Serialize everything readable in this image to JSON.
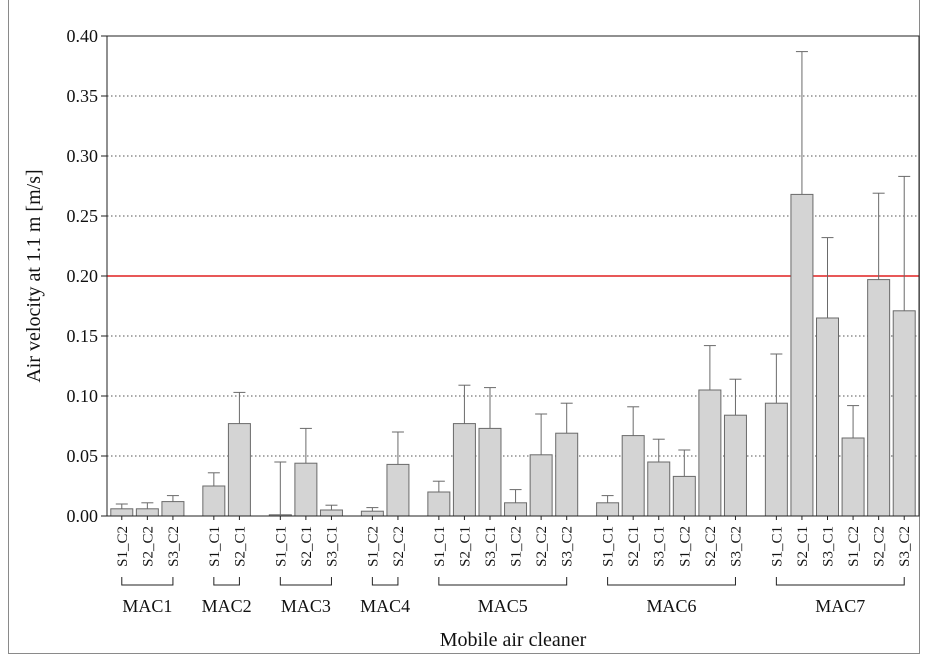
{
  "chart_data": {
    "type": "bar",
    "xlabel": "Mobile air cleaner",
    "ylabel": "Air velocity at 1.1 m [m/s]",
    "ylim": [
      0,
      0.4
    ],
    "yticks": [
      "0.00",
      "0.05",
      "0.10",
      "0.15",
      "0.20",
      "0.25",
      "0.30",
      "0.35",
      "0.40"
    ],
    "grid": "horizontal-dotted",
    "reference_line": {
      "value": 0.2,
      "color": "#e02020"
    },
    "bar_color": "#d4d4d4",
    "groups": [
      {
        "name": "MAC1",
        "bars": [
          {
            "label": "S1_C2",
            "value": 0.006,
            "error": 0.004
          },
          {
            "label": "S2_C2",
            "value": 0.006,
            "error": 0.005
          },
          {
            "label": "S3_C2",
            "value": 0.012,
            "error": 0.005
          }
        ]
      },
      {
        "name": "MAC2",
        "bars": [
          {
            "label": "S1_C1",
            "value": 0.025,
            "error": 0.011
          },
          {
            "label": "S2_C1",
            "value": 0.077,
            "error": 0.026
          }
        ]
      },
      {
        "name": "MAC3",
        "bars": [
          {
            "label": "S1_C1",
            "value": 0.001,
            "error": 0.044
          },
          {
            "label": "S2_C1",
            "value": 0.044,
            "error": 0.029
          },
          {
            "label": "S3_C1",
            "value": 0.005,
            "error": 0.004
          }
        ]
      },
      {
        "name": "MAC4",
        "bars": [
          {
            "label": "S1_C2",
            "value": 0.004,
            "error": 0.003
          },
          {
            "label": "S2_C2",
            "value": 0.043,
            "error": 0.027
          }
        ]
      },
      {
        "name": "MAC5",
        "bars": [
          {
            "label": "S1_C1",
            "value": 0.02,
            "error": 0.009
          },
          {
            "label": "S2_C1",
            "value": 0.077,
            "error": 0.032
          },
          {
            "label": "S3_C1",
            "value": 0.073,
            "error": 0.034
          },
          {
            "label": "S1_C2",
            "value": 0.011,
            "error": 0.011
          },
          {
            "label": "S2_C2",
            "value": 0.051,
            "error": 0.034
          },
          {
            "label": "S3_C2",
            "value": 0.069,
            "error": 0.025
          }
        ]
      },
      {
        "name": "MAC6",
        "bars": [
          {
            "label": "S1_C1",
            "value": 0.011,
            "error": 0.006
          },
          {
            "label": "S2_C1",
            "value": 0.067,
            "error": 0.024
          },
          {
            "label": "S3_C1",
            "value": 0.045,
            "error": 0.019
          },
          {
            "label": "S1_C2",
            "value": 0.033,
            "error": 0.022
          },
          {
            "label": "S2_C2",
            "value": 0.105,
            "error": 0.037
          },
          {
            "label": "S3_C2",
            "value": 0.084,
            "error": 0.03
          }
        ]
      },
      {
        "name": "MAC7",
        "bars": [
          {
            "label": "S1_C1",
            "value": 0.094,
            "error": 0.041
          },
          {
            "label": "S2_C1",
            "value": 0.268,
            "error": 0.119
          },
          {
            "label": "S3_C1",
            "value": 0.165,
            "error": 0.067
          },
          {
            "label": "S1_C2",
            "value": 0.065,
            "error": 0.027
          },
          {
            "label": "S2_C2",
            "value": 0.197,
            "error": 0.072
          },
          {
            "label": "S3_C2",
            "value": 0.171,
            "error": 0.112
          }
        ]
      }
    ]
  }
}
